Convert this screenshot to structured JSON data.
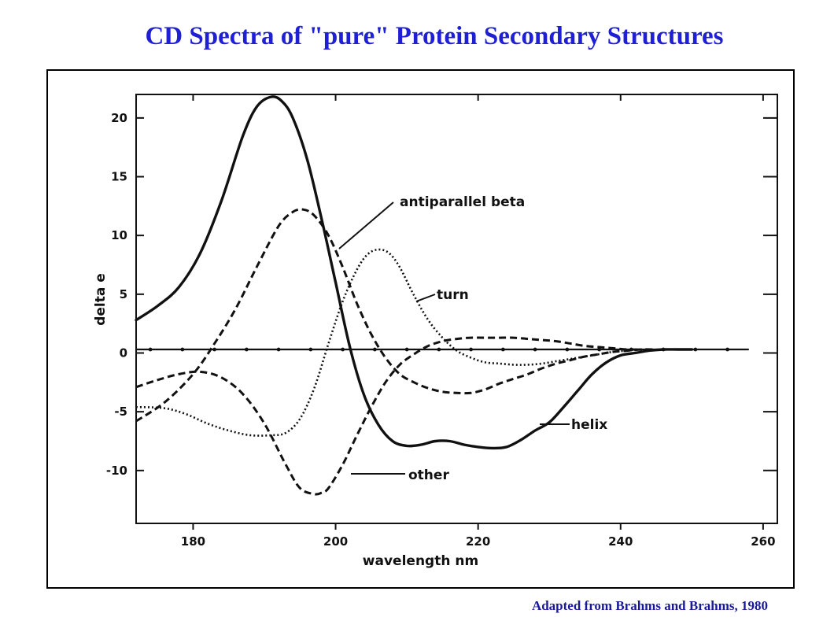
{
  "page": {
    "title": "CD Spectra of \"pure\" Protein Secondary Structures",
    "credit": "Adapted from Brahms and Brahms, 1980"
  },
  "colors": {
    "title": "#1f1fd6",
    "credit": "#1a1a99",
    "ink": "#111111"
  },
  "chart_data": {
    "type": "line",
    "title": "",
    "xlabel": "wavelength nm",
    "ylabel": "delta e",
    "xlim": [
      172,
      262
    ],
    "ylim": [
      -14.5,
      22
    ],
    "xticks": [
      180,
      200,
      220,
      240,
      260
    ],
    "yticks": [
      20,
      15,
      10,
      5,
      0,
      -5,
      -10
    ],
    "grid": false,
    "legend": "none",
    "series": [
      {
        "name": "helix",
        "style": "solid",
        "x": [
          172,
          175,
          178,
          181,
          184,
          187,
          189,
          191,
          192.5,
          194,
          196,
          198,
          200,
          202,
          204,
          206,
          208,
          210,
          212,
          214,
          216,
          218,
          220,
          222,
          224,
          226,
          228,
          230,
          232,
          234,
          236,
          238,
          240,
          242,
          244,
          246,
          248,
          250
        ],
        "y": [
          2.8,
          4.0,
          5.6,
          8.5,
          13.0,
          18.5,
          21.0,
          21.8,
          21.4,
          20.0,
          16.5,
          11.5,
          6.0,
          0.5,
          -3.6,
          -6.1,
          -7.5,
          -7.9,
          -7.8,
          -7.5,
          -7.5,
          -7.8,
          -8.0,
          -8.1,
          -8.0,
          -7.4,
          -6.6,
          -5.9,
          -4.6,
          -3.2,
          -1.8,
          -0.8,
          -0.2,
          0.0,
          0.2,
          0.3,
          0.3,
          0.3
        ]
      },
      {
        "name": "antiparallel beta",
        "style": "dashed",
        "x": [
          172,
          176,
          180,
          183,
          186,
          189,
          192,
          194,
          195.5,
          197,
          199,
          201,
          203,
          205,
          207,
          209,
          211,
          213,
          215,
          217,
          219,
          221,
          223,
          225,
          227,
          229,
          231,
          233,
          235,
          237,
          239,
          241,
          243,
          245
        ],
        "y": [
          -5.8,
          -4.2,
          -1.8,
          0.8,
          3.8,
          7.4,
          10.8,
          12.0,
          12.2,
          11.7,
          10.0,
          7.3,
          4.2,
          1.6,
          -0.4,
          -1.8,
          -2.5,
          -3.0,
          -3.3,
          -3.4,
          -3.4,
          -3.1,
          -2.6,
          -2.2,
          -1.8,
          -1.3,
          -0.9,
          -0.6,
          -0.3,
          -0.1,
          0.1,
          0.2,
          0.3,
          0.3
        ]
      },
      {
        "name": "turn",
        "style": "dotted",
        "x": [
          172,
          176,
          179,
          182,
          185,
          188,
          191,
          193,
          195,
          197,
          199,
          201,
          203,
          204.5,
          206,
          207.5,
          209,
          211,
          213,
          215,
          217,
          219,
          221,
          223,
          225,
          227,
          229,
          231,
          233,
          235,
          237,
          239,
          241
        ],
        "y": [
          -4.6,
          -4.7,
          -5.2,
          -6.0,
          -6.6,
          -7.0,
          -7.0,
          -6.8,
          -5.6,
          -3.0,
          0.8,
          4.4,
          7.1,
          8.4,
          8.8,
          8.5,
          7.3,
          4.9,
          2.8,
          1.3,
          0.2,
          -0.4,
          -0.8,
          -0.9,
          -1.0,
          -1.0,
          -0.9,
          -0.7,
          -0.5,
          -0.3,
          -0.1,
          0.1,
          0.2
        ]
      },
      {
        "name": "other",
        "style": "dashed",
        "x": [
          172,
          175,
          178,
          181,
          184,
          187,
          190,
          193,
          195,
          197,
          198,
          199,
          201,
          203,
          205,
          207,
          209,
          211,
          213,
          215,
          217,
          219,
          221,
          223,
          225,
          227,
          229,
          231,
          233,
          235,
          237,
          239,
          241,
          243
        ],
        "y": [
          -2.9,
          -2.3,
          -1.8,
          -1.6,
          -2.1,
          -3.5,
          -6.0,
          -9.5,
          -11.5,
          -12.0,
          -11.9,
          -11.5,
          -9.5,
          -7.0,
          -4.6,
          -2.5,
          -1.0,
          -0.1,
          0.6,
          1.0,
          1.2,
          1.3,
          1.3,
          1.3,
          1.3,
          1.2,
          1.1,
          1.0,
          0.8,
          0.6,
          0.5,
          0.4,
          0.3,
          0.3
        ]
      },
      {
        "name": "baseline",
        "style": "solid-dots",
        "x": [
          172,
          258
        ],
        "y": [
          0.3,
          0.3
        ]
      }
    ],
    "labels": [
      {
        "series": "antiparallel beta",
        "text": "antiparallel beta"
      },
      {
        "series": "turn",
        "text": "turn"
      },
      {
        "series": "helix",
        "text": "helix"
      },
      {
        "series": "other",
        "text": "other"
      }
    ]
  }
}
